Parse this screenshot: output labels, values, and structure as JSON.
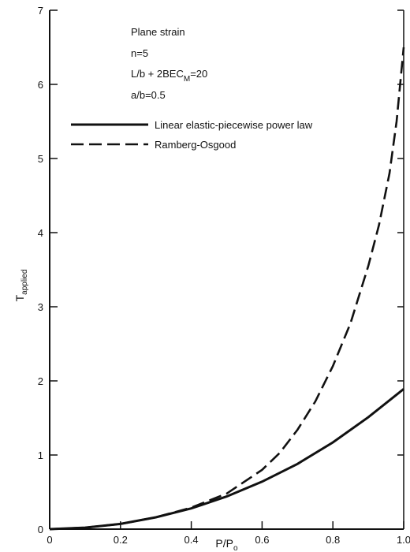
{
  "chart_data": {
    "type": "line",
    "xlabel": "P/P",
    "xlabel_sub": "o",
    "ylabel": "T",
    "ylabel_sub": "applied",
    "xlim": [
      0,
      1.0
    ],
    "ylim": [
      0,
      7
    ],
    "x_ticks": [
      0,
      0.2,
      0.4,
      0.6,
      0.8,
      1.0
    ],
    "x_tick_labels": [
      "0",
      "0.2",
      "0.4",
      "0.6",
      "0.8",
      "1.0"
    ],
    "y_ticks": [
      0,
      1,
      2,
      3,
      4,
      5,
      6,
      7
    ],
    "y_tick_labels": [
      "0",
      "1",
      "2",
      "3",
      "4",
      "5",
      "6",
      "7"
    ],
    "grid": false,
    "legend_position": "top-right",
    "annotations": [
      {
        "text": "Plane strain"
      },
      {
        "text": "n=5"
      },
      {
        "text": "L/b + 2BEC",
        "sub": "M",
        "suffix": "=20"
      },
      {
        "text": "a/b=0.5"
      }
    ],
    "series": [
      {
        "name": "Linear elastic-piecewise power law",
        "style": "solid",
        "color": "#111111",
        "x": [
          0,
          0.1,
          0.2,
          0.3,
          0.4,
          0.5,
          0.6,
          0.7,
          0.8,
          0.9,
          1.0
        ],
        "y": [
          0,
          0.02,
          0.07,
          0.16,
          0.28,
          0.44,
          0.64,
          0.88,
          1.17,
          1.51,
          1.89
        ]
      },
      {
        "name": "Ramberg-Osgood",
        "style": "dashed",
        "color": "#111111",
        "x": [
          0,
          0.1,
          0.2,
          0.3,
          0.4,
          0.5,
          0.6,
          0.65,
          0.7,
          0.75,
          0.8,
          0.85,
          0.9,
          0.93,
          0.96,
          0.98,
          1.0
        ],
        "y": [
          0,
          0.02,
          0.07,
          0.16,
          0.29,
          0.48,
          0.8,
          1.03,
          1.34,
          1.72,
          2.2,
          2.78,
          3.55,
          4.1,
          4.8,
          5.5,
          6.5
        ]
      }
    ]
  }
}
